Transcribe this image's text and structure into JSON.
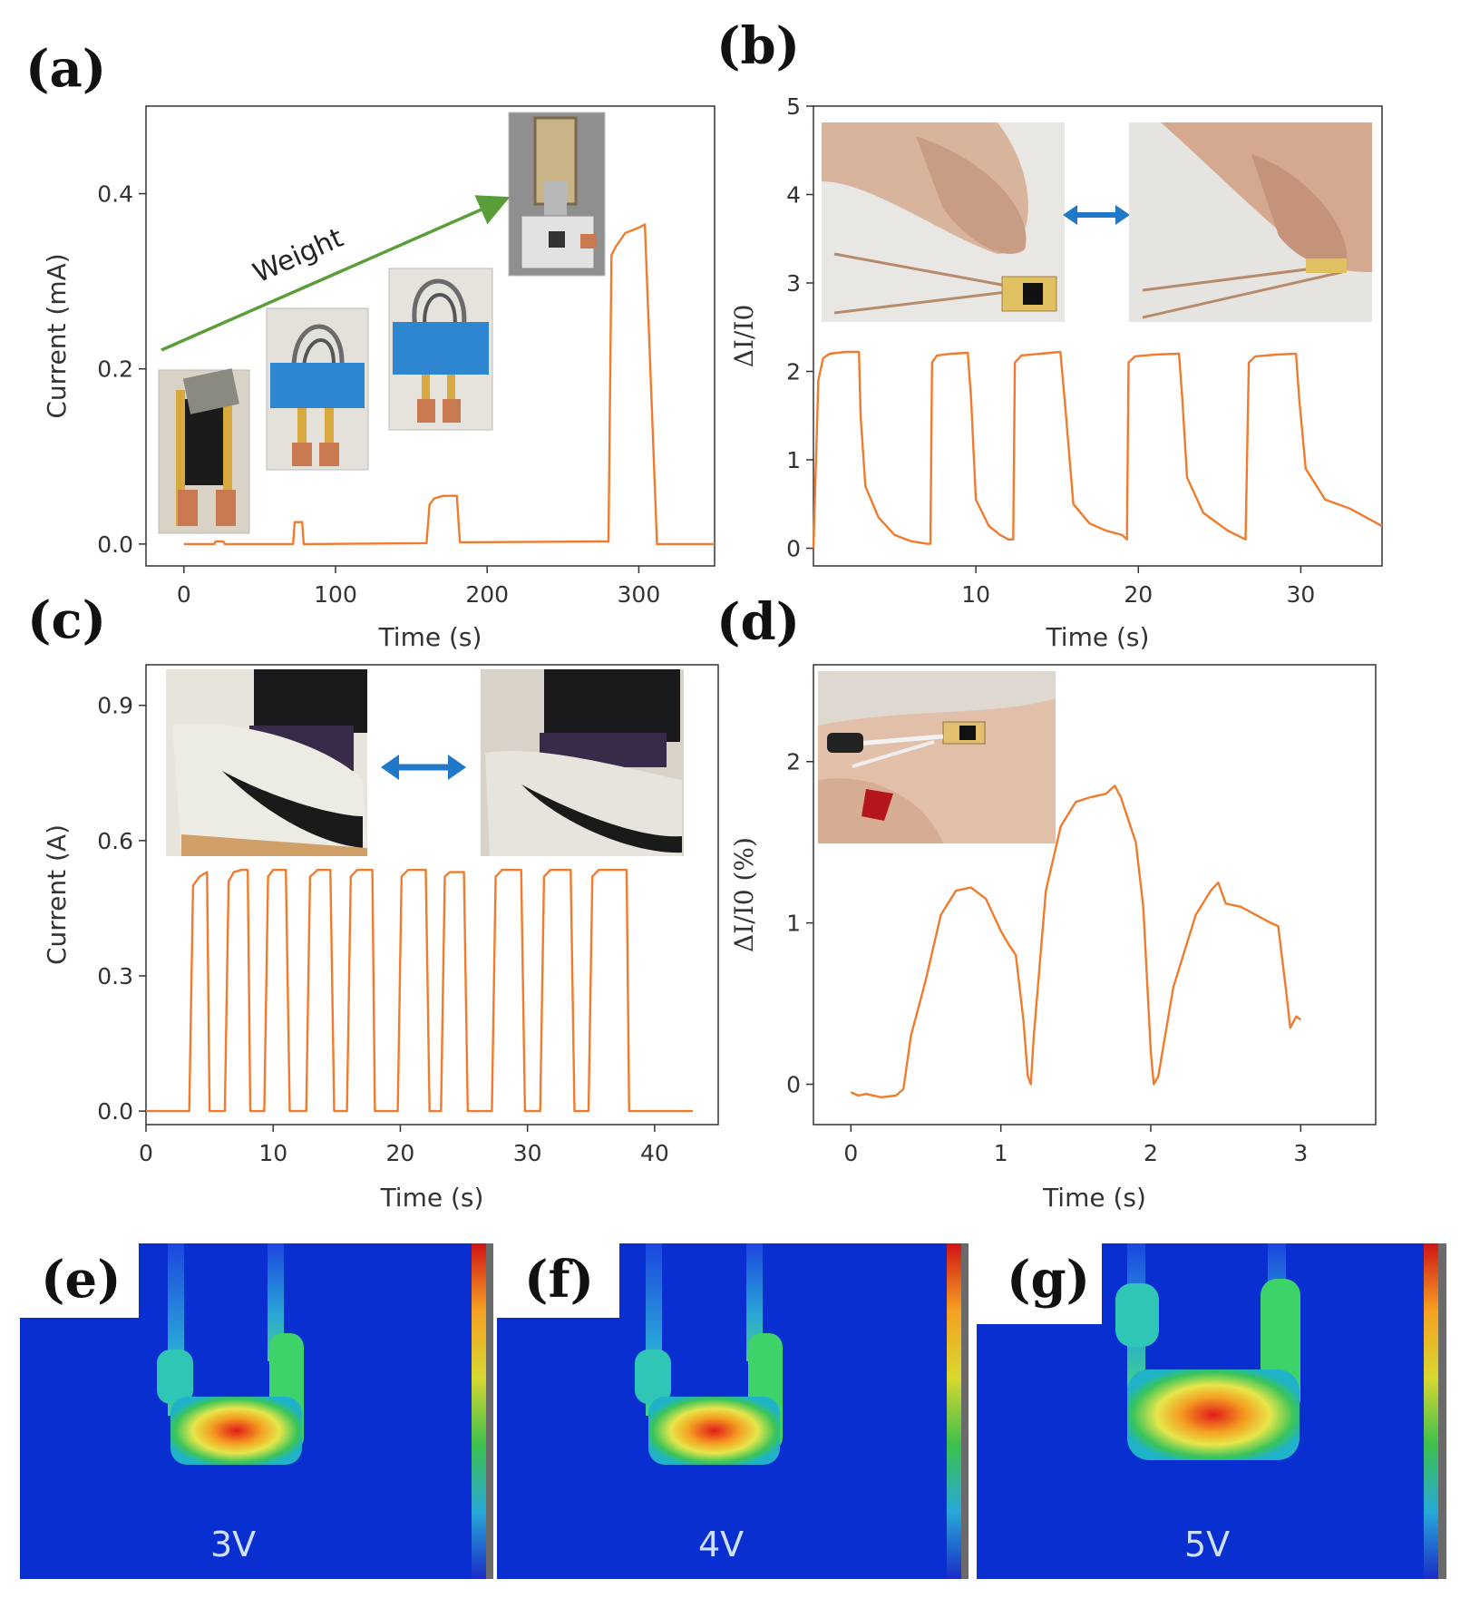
{
  "colors": {
    "series": "#f07b2c",
    "axis": "#333333",
    "arrow_green": "#5a9e3a",
    "arrow_blue": "#1f78c8"
  },
  "panels": {
    "a": {
      "label": "(a)"
    },
    "b": {
      "label": "(b)"
    },
    "c": {
      "label": "(c)"
    },
    "d": {
      "label": "(d)"
    },
    "e": {
      "label": "(e)"
    },
    "f": {
      "label": "(f)"
    },
    "g": {
      "label": "(g)"
    }
  },
  "annotations": {
    "weight": "Weight"
  },
  "thermal": {
    "e": "3V",
    "f": "4V",
    "g": "5V"
  },
  "chart_data": [
    {
      "id": "a",
      "type": "line",
      "xlabel": "Time (s)",
      "ylabel": "Current (mA)",
      "xlim": [
        -25,
        350
      ],
      "ylim": [
        -0.025,
        0.5
      ],
      "xticks": [
        0,
        100,
        200,
        300
      ],
      "yticks": [
        0.0,
        0.2,
        0.4
      ],
      "xtick_labels": [
        "0",
        "100",
        "200",
        "300"
      ],
      "ytick_labels": [
        "0.0",
        "0.2",
        "0.4"
      ],
      "x": [
        0,
        20,
        21,
        26,
        27,
        72,
        73,
        78,
        79,
        160,
        162,
        165,
        171,
        180,
        182,
        280,
        282,
        285,
        291,
        301,
        304,
        312,
        320,
        350
      ],
      "y": [
        0,
        0,
        0.003,
        0.003,
        0,
        0,
        0.025,
        0.025,
        0,
        0.001,
        0.045,
        0.052,
        0.055,
        0.055,
        0.002,
        0.003,
        0.33,
        0.34,
        0.355,
        0.362,
        0.365,
        0,
        0,
        0
      ]
    },
    {
      "id": "b",
      "type": "line",
      "xlabel": "Time (s)",
      "ylabel": "ΔI/I0",
      "xlim": [
        0,
        35
      ],
      "ylim": [
        -0.2,
        5
      ],
      "xticks": [
        10,
        20,
        30
      ],
      "yticks": [
        0,
        1,
        2,
        3,
        4,
        5
      ],
      "xtick_labels": [
        "10",
        "20",
        "30"
      ],
      "ytick_labels": [
        "0",
        "1",
        "2",
        "3",
        "4",
        "5"
      ],
      "x": [
        0,
        0.3,
        0.6,
        1.0,
        2.0,
        2.8,
        2.9,
        3.2,
        4.0,
        5.0,
        6.0,
        7.0,
        7.2,
        7.3,
        7.6,
        8.5,
        9.5,
        9.7,
        10.0,
        10.8,
        11.5,
        12.0,
        12.3,
        12.4,
        12.8,
        14.0,
        15.2,
        15.5,
        16.0,
        17.0,
        18.0,
        19.0,
        19.3,
        19.4,
        19.8,
        21.0,
        22.5,
        22.7,
        23.0,
        24.0,
        25.5,
        26.6,
        26.8,
        27.2,
        28.5,
        29.7,
        29.9,
        30.3,
        31.5,
        33.0,
        35.0
      ],
      "y": [
        0,
        1.9,
        2.15,
        2.2,
        2.22,
        2.22,
        1.5,
        0.7,
        0.35,
        0.15,
        0.08,
        0.05,
        0.05,
        2.1,
        2.18,
        2.2,
        2.21,
        1.7,
        0.55,
        0.25,
        0.15,
        0.1,
        0.1,
        2.1,
        2.18,
        2.2,
        2.22,
        1.6,
        0.5,
        0.28,
        0.2,
        0.15,
        0.1,
        2.1,
        2.17,
        2.19,
        2.2,
        1.7,
        0.8,
        0.4,
        0.2,
        0.1,
        2.1,
        2.17,
        2.19,
        2.2,
        1.7,
        0.9,
        0.55,
        0.45,
        0.25
      ]
    },
    {
      "id": "c",
      "type": "line",
      "xlabel": "Time (s)",
      "ylabel": "Current (A)",
      "xlim": [
        0,
        45
      ],
      "ylim": [
        -0.03,
        0.99
      ],
      "xticks": [
        0,
        10,
        20,
        30,
        40
      ],
      "yticks": [
        0.0,
        0.3,
        0.6,
        0.9
      ],
      "xtick_labels": [
        "0",
        "10",
        "20",
        "30",
        "40"
      ],
      "ytick_labels": [
        "0.0",
        "0.3",
        "0.6",
        "0.9"
      ],
      "x": [
        0,
        3.4,
        3.7,
        4.2,
        4.8,
        5.0,
        6.2,
        6.5,
        6.9,
        7.5,
        8.0,
        8.2,
        9.3,
        9.6,
        10.0,
        11.0,
        11.3,
        12.6,
        12.9,
        13.5,
        14.5,
        14.8,
        15.8,
        16.1,
        16.6,
        17.8,
        18.0,
        19.8,
        20.1,
        20.6,
        22.0,
        22.3,
        23.2,
        23.5,
        23.9,
        25.0,
        25.3,
        27.2,
        27.5,
        28.0,
        29.5,
        29.8,
        31.0,
        31.3,
        31.8,
        33.4,
        33.7,
        34.8,
        35.1,
        35.6,
        37.8,
        38.0,
        43.0
      ],
      "y": [
        0,
        0,
        0.5,
        0.52,
        0.53,
        0,
        0,
        0.51,
        0.53,
        0.535,
        0.535,
        0,
        0,
        0.52,
        0.535,
        0.535,
        0,
        0,
        0.52,
        0.535,
        0.535,
        0,
        0,
        0.52,
        0.535,
        0.535,
        0,
        0,
        0.52,
        0.535,
        0.535,
        0,
        0,
        0.52,
        0.53,
        0.53,
        0,
        0,
        0.52,
        0.535,
        0.535,
        0,
        0,
        0.52,
        0.535,
        0.535,
        0,
        0,
        0.52,
        0.535,
        0.535,
        0,
        0
      ]
    },
    {
      "id": "d",
      "type": "line",
      "xlabel": "Time (s)",
      "ylabel": "ΔI/I0 (%)",
      "xlim": [
        -0.25,
        3.5
      ],
      "ylim": [
        -0.25,
        2.6
      ],
      "xticks": [
        0,
        1,
        2,
        3
      ],
      "yticks": [
        0,
        1,
        2
      ],
      "xtick_labels": [
        "0",
        "1",
        "2",
        "3"
      ],
      "ytick_labels": [
        "0",
        "1",
        "2"
      ],
      "x": [
        0,
        0.05,
        0.1,
        0.2,
        0.3,
        0.35,
        0.4,
        0.5,
        0.6,
        0.7,
        0.8,
        0.9,
        1.0,
        1.05,
        1.1,
        1.15,
        1.18,
        1.2,
        1.22,
        1.3,
        1.4,
        1.5,
        1.6,
        1.7,
        1.76,
        1.8,
        1.9,
        1.95,
        2.0,
        2.02,
        2.05,
        2.15,
        2.3,
        2.4,
        2.45,
        2.5,
        2.6,
        2.7,
        2.8,
        2.85,
        2.9,
        2.93,
        2.97,
        3.0
      ],
      "y": [
        -0.05,
        -0.07,
        -0.06,
        -0.08,
        -0.07,
        -0.03,
        0.3,
        0.65,
        1.05,
        1.2,
        1.22,
        1.15,
        0.95,
        0.87,
        0.8,
        0.4,
        0.05,
        0,
        0.3,
        1.2,
        1.6,
        1.75,
        1.78,
        1.8,
        1.85,
        1.78,
        1.5,
        1.1,
        0.2,
        0,
        0.05,
        0.6,
        1.05,
        1.2,
        1.25,
        1.12,
        1.1,
        1.05,
        1.0,
        0.98,
        0.6,
        0.35,
        0.42,
        0.4
      ]
    }
  ]
}
